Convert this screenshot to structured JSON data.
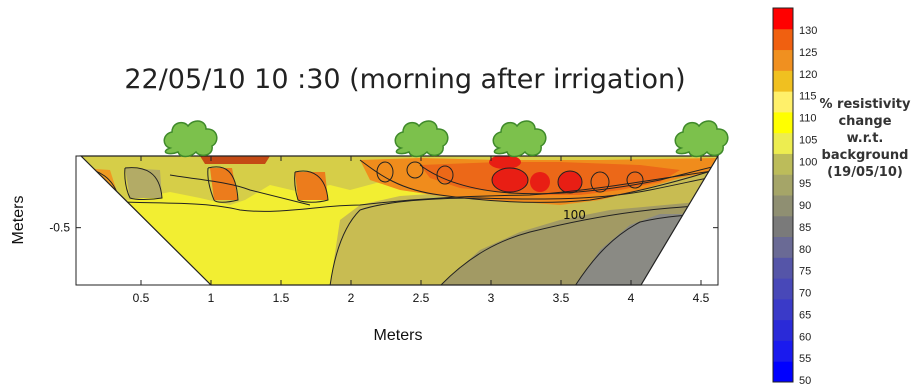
{
  "chart_data": {
    "type": "heatmap",
    "title": "22/05/10  10 :30 (morning after irrigation)",
    "xlabel": "Meters",
    "ylabel": "Meters",
    "xlim": [
      0,
      4.55
    ],
    "ylim": [
      -0.9,
      0
    ],
    "x_ticks": [
      "0.5",
      "1",
      "1.5",
      "2",
      "2.5",
      "3",
      "3.5",
      "4",
      "4.5"
    ],
    "y_ticks": [
      "-0.5"
    ],
    "contour_labels": [
      "100"
    ],
    "colorbar": {
      "label": [
        "% resistivity",
        "change",
        "w.r.t.",
        "background",
        "(19/05/10)"
      ],
      "ticks": [
        "50",
        "55",
        "60",
        "65",
        "70",
        "75",
        "80",
        "85",
        "90",
        "95",
        "100",
        "105",
        "110",
        "115",
        "120",
        "125",
        "130"
      ],
      "colors": [
        "#0000ff",
        "#1a1aee",
        "#2a2ad8",
        "#3a3ac8",
        "#4848b8",
        "#5555a8",
        "#6a6a95",
        "#7a7a7a",
        "#8f8f72",
        "#a5a568",
        "#bcbc5a",
        "#eded50",
        "#ffff00",
        "#fff06a",
        "#f0c020",
        "#f09020",
        "#f06010",
        "#ff0000"
      ]
    },
    "trees_x": [
      0.85,
      2.5,
      3.2,
      4.5
    ],
    "zones": [
      {
        "name": "yellow_left",
        "color": "#f2ee32"
      },
      {
        "name": "olive_center",
        "color": "#c8bc52"
      },
      {
        "name": "khaki_right",
        "color": "#a29a64"
      },
      {
        "name": "grey_right",
        "color": "#8a8a84"
      },
      {
        "name": "orange_band",
        "color": "#f08c1c"
      },
      {
        "name": "red_pockets",
        "color": "#e81e14"
      }
    ]
  }
}
